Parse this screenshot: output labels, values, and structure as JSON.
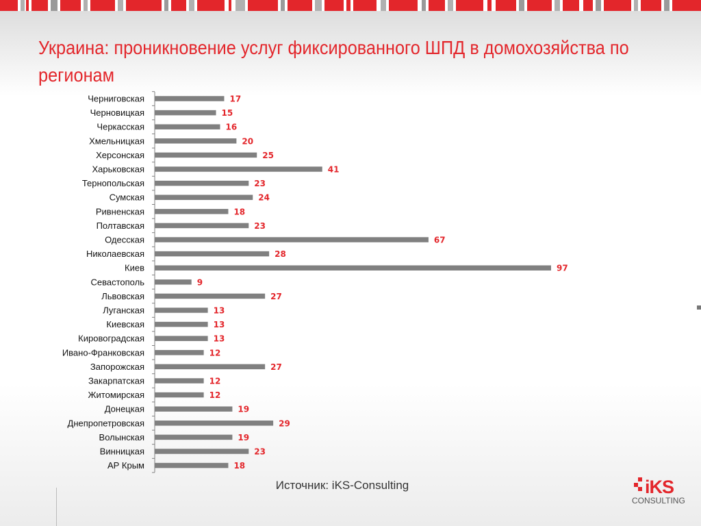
{
  "slide": {
    "title": "Украина: проникновение услуг фиксированного ШПД в домохозяйства по регионам",
    "source": "Источник: iKS-Consulting",
    "logo_name": "iKS",
    "logo_sub": "CONSULTING"
  },
  "colors": {
    "accent": "#e3262b",
    "bar": "#808080",
    "axis": "#7f7f7f"
  },
  "chart_data": {
    "type": "bar",
    "orientation": "horizontal",
    "title": "",
    "xlabel": "",
    "ylabel": "",
    "xlim": [
      0,
      100
    ],
    "grid": false,
    "data_labels": true,
    "categories": [
      "Черниговская",
      "Черновицкая",
      "Черкасская",
      "Хмельницкая",
      "Херсонская",
      "Харьковская",
      "Тернопольская",
      "Сумская",
      "Ривненская",
      "Полтавская",
      "Одесская",
      "Николаевская",
      "Киев",
      "Севастополь",
      "Львовская",
      "Луганская",
      "Киевская",
      "Кировоградская",
      "Ивано-Франковская",
      "Запорожская",
      "Закарпатская",
      "Житомирская",
      "Донецкая",
      "Днепропетровская",
      "Волынская",
      "Винницкая",
      "АР Крым"
    ],
    "values": [
      17,
      15,
      16,
      20,
      25,
      41,
      23,
      24,
      18,
      23,
      67,
      28,
      97,
      9,
      27,
      13,
      13,
      13,
      12,
      27,
      12,
      12,
      19,
      29,
      19,
      23,
      18
    ]
  }
}
